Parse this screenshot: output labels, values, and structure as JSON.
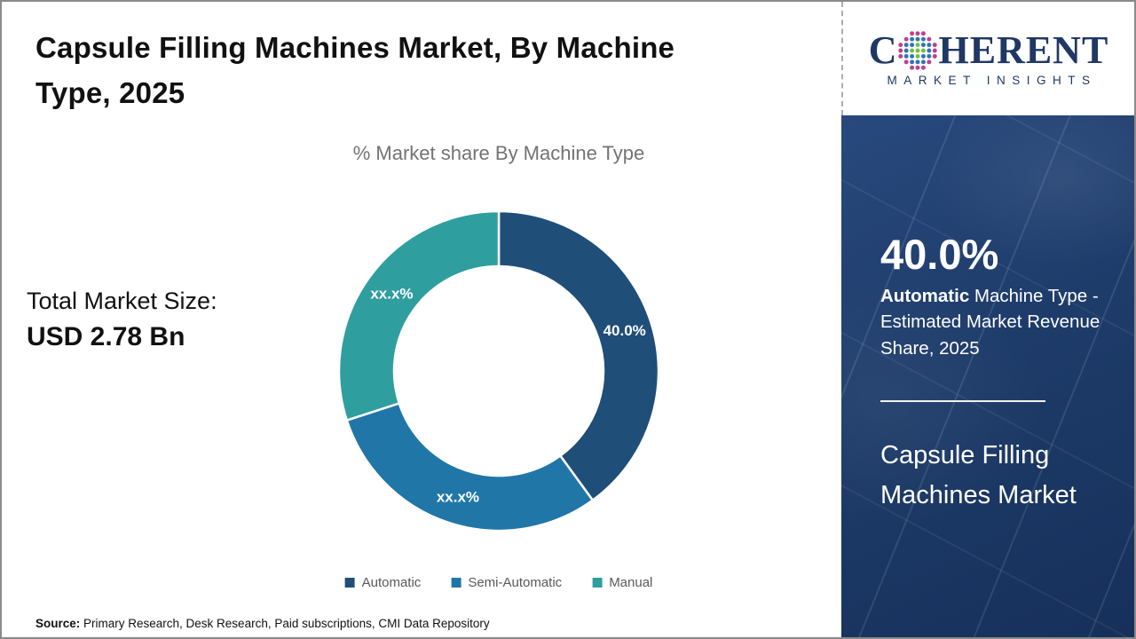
{
  "page": {
    "title": "Capsule Filling Machines Market, By Machine Type, 2025"
  },
  "logo": {
    "word_start": "C",
    "word_end": "HERENT",
    "subtitle": "MARKET INSIGHTS",
    "brand_color": "#1F3864",
    "globe_colors": {
      "inner": "#72BF44",
      "mid": "#2E75B6",
      "outer": "#C13F8C"
    }
  },
  "left_panel": {
    "total_label": "Total Market Size:",
    "total_value": "USD 2.78 Bn"
  },
  "sidebar": {
    "stat_value": "40.0%",
    "stat_bold": "Automatic",
    "stat_rest": " Machine Type - Estimated Market Revenue Share, 2025",
    "market_name": "Capsule Filling Machines Market",
    "background_color": "#1E3C6A"
  },
  "chart_data": {
    "type": "pie",
    "donut": true,
    "title": "% Market share By Machine Type",
    "legend_position": "bottom",
    "series": [
      {
        "name": "Automatic",
        "value": 40.0,
        "label": "40.0%",
        "color": "#1F4E79"
      },
      {
        "name": "Semi-Automatic",
        "value": 30.0,
        "label": "xx.x%",
        "color": "#2077A7"
      },
      {
        "name": "Manual",
        "value": 30.0,
        "label": "xx.x%",
        "color": "#2F9E9F"
      }
    ]
  },
  "source": {
    "label": "Source:",
    "text": " Primary Research, Desk Research, Paid subscriptions, CMI Data Repository"
  }
}
